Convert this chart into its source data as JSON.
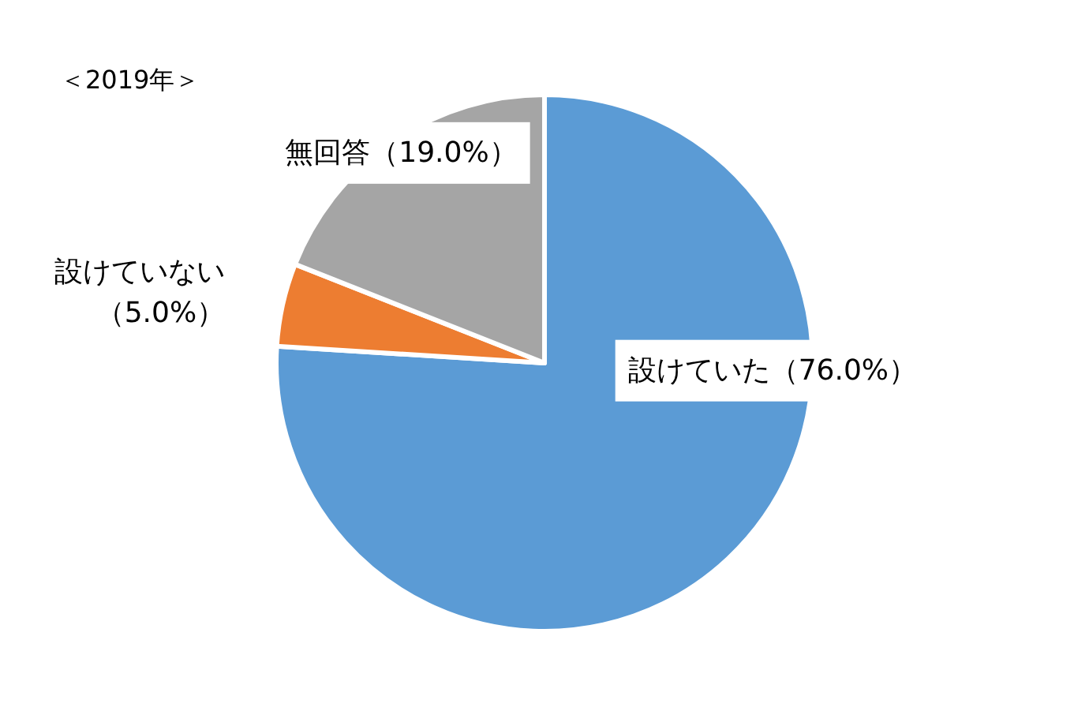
{
  "chart_data": {
    "type": "pie",
    "title": "＜2019年＞",
    "categories": [
      "設けていた",
      "設けていない",
      "無回答"
    ],
    "values": [
      76,
      5,
      19
    ],
    "value_labels": [
      "（76.0%）",
      "（5.0%）",
      "（19.0%）"
    ],
    "colors": [
      "#5b9bd5",
      "#ed7d31",
      "#a5a5a5"
    ]
  }
}
